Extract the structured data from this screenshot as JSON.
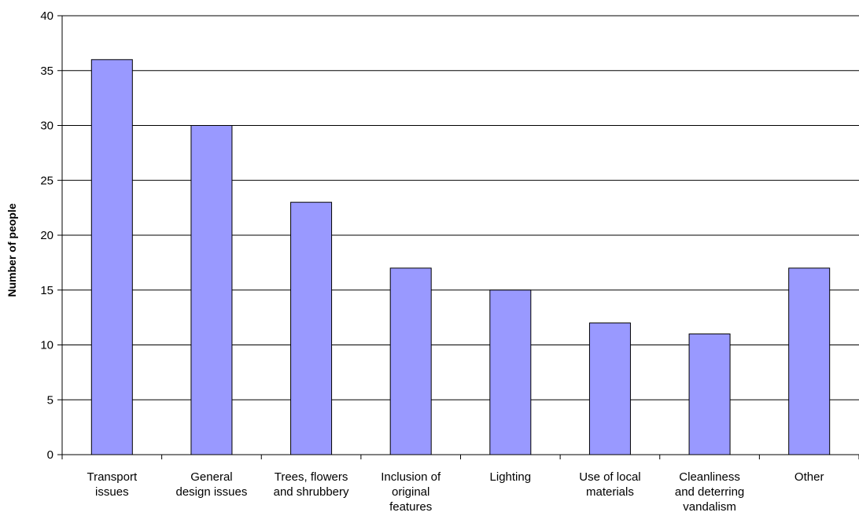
{
  "chart_data": {
    "type": "bar",
    "title": "",
    "xlabel": "",
    "ylabel": "Number of people",
    "ylim": [
      0,
      40
    ],
    "yticks": [
      0,
      5,
      10,
      15,
      20,
      25,
      30,
      35,
      40
    ],
    "grid": true,
    "categories": [
      [
        "Transport",
        "issues"
      ],
      [
        "General",
        "design issues"
      ],
      [
        "Trees, flowers",
        "and shrubbery"
      ],
      [
        "Inclusion of",
        "original",
        "features"
      ],
      [
        "Lighting"
      ],
      [
        "Use of local",
        "materials"
      ],
      [
        "Cleanliness",
        "and deterring",
        "vandalism"
      ],
      [
        "Other"
      ]
    ],
    "values": [
      36,
      30,
      23,
      17,
      15,
      12,
      11,
      17
    ],
    "colors": {
      "bar_fill": "#9999ff",
      "bar_stroke": "#000000",
      "grid": "#000000"
    }
  }
}
